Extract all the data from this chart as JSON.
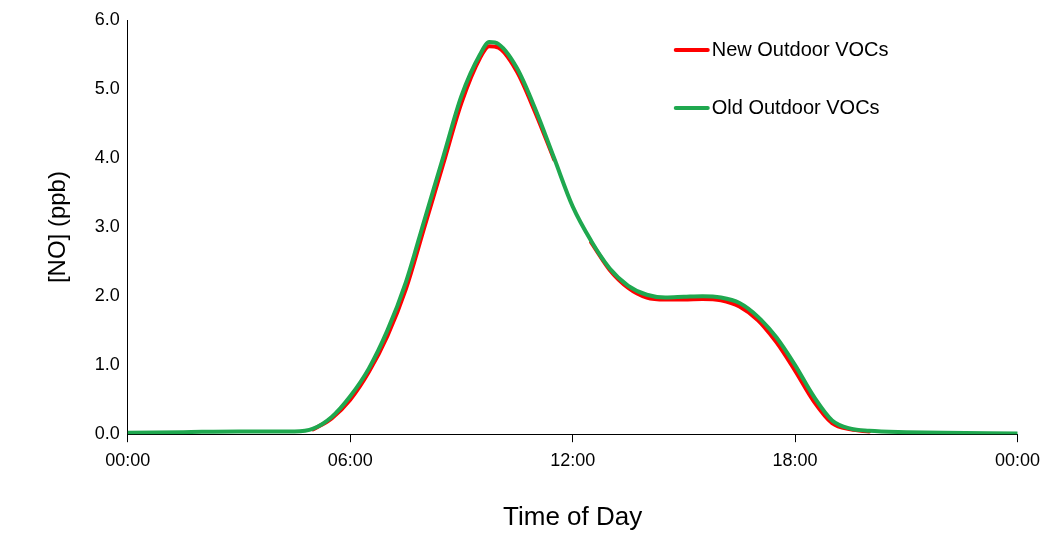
{
  "chart_data": {
    "type": "line",
    "xlabel": "Time of Day",
    "ylabel": "[NO] (ppb)",
    "xlim": [
      0,
      24
    ],
    "xticks": [
      {
        "value": 0,
        "label": "00:00"
      },
      {
        "value": 6,
        "label": "06:00"
      },
      {
        "value": 12,
        "label": "12:00"
      },
      {
        "value": 18,
        "label": "18:00"
      },
      {
        "value": 24,
        "label": "00:00"
      }
    ],
    "ylim": [
      0,
      6
    ],
    "yticks": [
      {
        "value": 0,
        "label": "0.0"
      },
      {
        "value": 1,
        "label": "1.0"
      },
      {
        "value": 2,
        "label": "2.0"
      },
      {
        "value": 3,
        "label": "3.0"
      },
      {
        "value": 4,
        "label": "4.0"
      },
      {
        "value": 5,
        "label": "5.0"
      },
      {
        "value": 6,
        "label": "6.0"
      }
    ],
    "x": [
      0,
      1.5,
      3,
      4.5,
      5,
      5.5,
      6,
      6.5,
      7,
      7.5,
      8,
      8.5,
      9,
      9.5,
      9.75,
      10,
      10.5,
      11,
      11.5,
      12,
      12.5,
      13,
      13.5,
      14,
      14.5,
      15,
      15.5,
      16,
      16.5,
      17,
      17.5,
      18,
      18.5,
      19,
      19.5,
      20,
      21,
      22,
      24
    ],
    "series": [
      {
        "name": "New Outdoor VOCs",
        "color": "#ff0000",
        "values": [
          null,
          null,
          null,
          null,
          0.07,
          0.23,
          0.5,
          0.9,
          1.42,
          2.1,
          3.0,
          3.9,
          4.8,
          5.45,
          5.62,
          5.6,
          5.25,
          4.65,
          3.98,
          null,
          2.78,
          2.38,
          2.12,
          1.98,
          1.95,
          1.95,
          1.96,
          1.94,
          1.85,
          1.65,
          1.33,
          0.92,
          0.48,
          0.16,
          0.07,
          0.04,
          null,
          null,
          null
        ]
      },
      {
        "name": "Old Outdoor VOCs",
        "color": "#1fa84f",
        "values": [
          0.02,
          0.03,
          0.04,
          0.04,
          0.08,
          0.25,
          0.55,
          0.95,
          1.5,
          2.2,
          3.1,
          4.0,
          4.9,
          5.5,
          5.68,
          5.65,
          5.3,
          4.7,
          4.0,
          3.3,
          2.8,
          2.4,
          2.15,
          2.02,
          1.98,
          1.99,
          2.0,
          1.98,
          1.9,
          1.7,
          1.4,
          1.0,
          0.55,
          0.2,
          0.08,
          0.05,
          0.03,
          0.02,
          0.01
        ]
      }
    ],
    "legend": "top right",
    "marker": "none",
    "line_style": "solid"
  }
}
